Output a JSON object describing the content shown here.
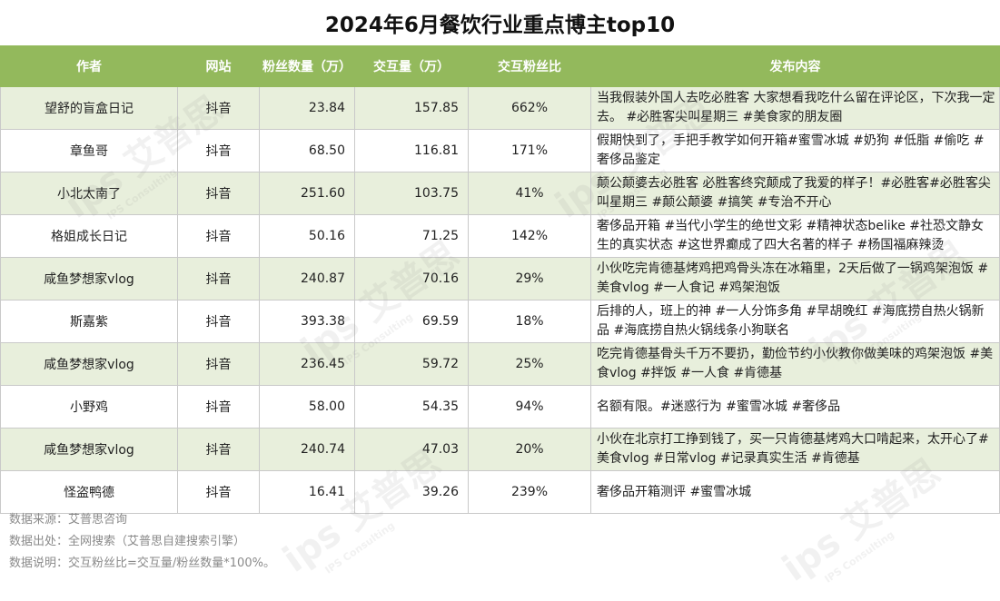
{
  "chart_data": {
    "type": "table",
    "title": "2024年6月餐饮行业重点博主top10",
    "columns": [
      "作者",
      "网站",
      "粉丝数量（万）",
      "交互量（万）",
      "交互粉丝比",
      "发布内容"
    ],
    "rows": [
      {
        "author": "望舒的盲盒日记",
        "site": "抖音",
        "fans": "23.84",
        "interactions": "157.85",
        "ratio": "662%",
        "content": "当我假装外国人去吃必胜客 大家想看我吃什么留在评论区，下次我一定去。 #必胜客尖叫星期三 #美食家的朋友圈"
      },
      {
        "author": "章鱼哥",
        "site": "抖音",
        "fans": "68.50",
        "interactions": "116.81",
        "ratio": "171%",
        "content": "假期快到了，手把手教学如何开箱#蜜雪冰城 #奶狗 #低脂 #偷吃 #奢侈品鉴定"
      },
      {
        "author": "小北太南了",
        "site": "抖音",
        "fans": "251.60",
        "interactions": "103.75",
        "ratio": "41%",
        "content": "颠公颠婆去必胜客 必胜客终究颠成了我爱的样子！#必胜客#必胜客尖叫星期三 #颠公颠婆 #搞笑 #专治不开心"
      },
      {
        "author": "格姐成长日记",
        "site": "抖音",
        "fans": "50.16",
        "interactions": "71.25",
        "ratio": "142%",
        "content": "奢侈品开箱 #当代小学生的绝世文彩 #精神状态belike #社恐文静女生的真实状态 #这世界癫成了四大名著的样子 #杨国福麻辣烫"
      },
      {
        "author": "咸鱼梦想家vlog",
        "site": "抖音",
        "fans": "240.87",
        "interactions": "70.16",
        "ratio": "29%",
        "content": "小伙吃完肯德基烤鸡把鸡骨头冻在冰箱里，2天后做了一锅鸡架泡饭 #美食vlog #一人食记 #鸡架泡饭"
      },
      {
        "author": "斯嘉紫",
        "site": "抖音",
        "fans": "393.38",
        "interactions": "69.59",
        "ratio": "18%",
        "content": "后排的人，班上的神 #一人分饰多角 #早胡晚红 #海底捞自热火锅新品 #海底捞自热火锅线条小狗联名"
      },
      {
        "author": "咸鱼梦想家vlog",
        "site": "抖音",
        "fans": "236.45",
        "interactions": "59.72",
        "ratio": "25%",
        "content": "吃完肯德基骨头千万不要扔，勤俭节约小伙教你做美味的鸡架泡饭 #美食vlog #拌饭 #一人食 #肯德基"
      },
      {
        "author": "小野鸡",
        "site": "抖音",
        "fans": "58.00",
        "interactions": "54.35",
        "ratio": "94%",
        "content": "名额有限。#迷惑行为 #蜜雪冰城 #奢侈品"
      },
      {
        "author": "咸鱼梦想家vlog",
        "site": "抖音",
        "fans": "240.74",
        "interactions": "47.03",
        "ratio": "20%",
        "content": "小伙在北京打工挣到钱了，买一只肯德基烤鸡大口啃起来，太开心了#美食vlog #日常vlog #记录真实生活 #肯德基"
      },
      {
        "author": "怪盗鸭德",
        "site": "抖音",
        "fans": "16.41",
        "interactions": "39.26",
        "ratio": "239%",
        "content": "奢侈品开箱测评 #蜜雪冰城"
      }
    ]
  },
  "footer": {
    "source": "数据来源：艾普思咨询",
    "origin": "数据出处：全网搜索（艾普思自建搜索引擎）",
    "note": "数据说明：交互粉丝比=交互量/粉丝数量*100%。"
  },
  "colors": {
    "header_bg": "#93b95c",
    "row_alt_bg": "#e8efdc",
    "header_text": "#ffffff"
  }
}
